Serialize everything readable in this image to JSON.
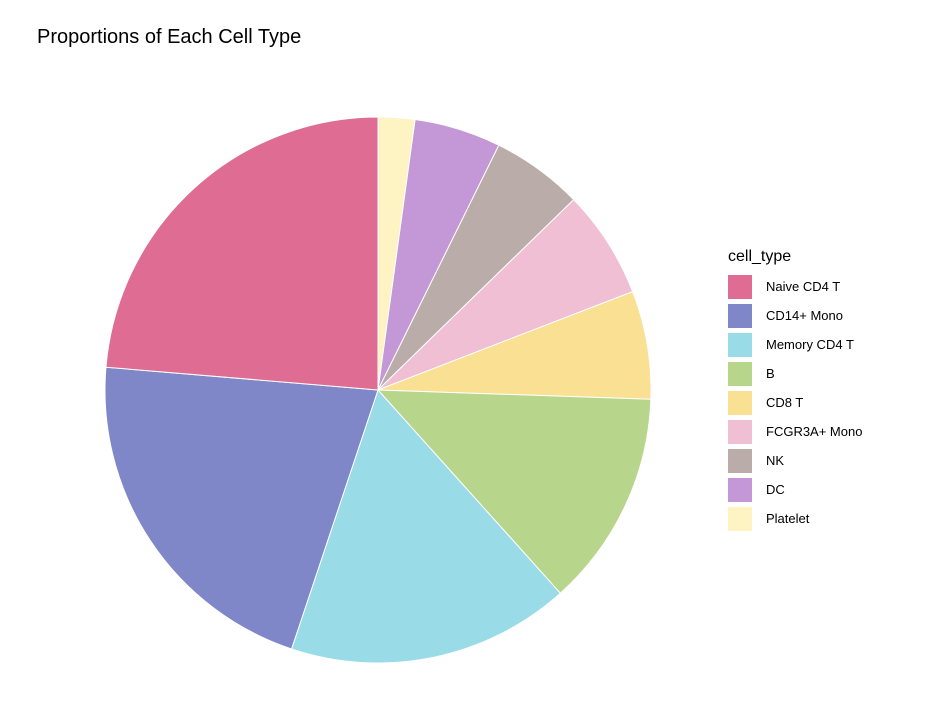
{
  "chart_data": {
    "type": "pie",
    "title": "Proportions of Each Cell Type",
    "legend_title": "cell_type",
    "legend_position": "right",
    "categories": [
      "Naive CD4 T",
      "CD14+ Mono",
      "Memory CD4 T",
      "B",
      "CD8 T",
      "FCGR3A+ Mono",
      "NK",
      "DC",
      "Platelet"
    ],
    "values": [
      24.0,
      21.5,
      17.0,
      13.0,
      6.5,
      6.5,
      5.5,
      5.2,
      2.2
    ],
    "colors": [
      "#DF6D93",
      "#7F87C8",
      "#99DCE8",
      "#B8D58C",
      "#F9E093",
      "#F0BFD3",
      "#BAACA8",
      "#C497D6",
      "#FEF3C3"
    ],
    "slice_order": [
      "Platelet",
      "DC",
      "NK",
      "FCGR3A+ Mono",
      "CD8 T",
      "B",
      "Memory CD4 T",
      "CD14+ Mono",
      "Naive CD4 T"
    ],
    "direction": "clockwise-from-top"
  }
}
